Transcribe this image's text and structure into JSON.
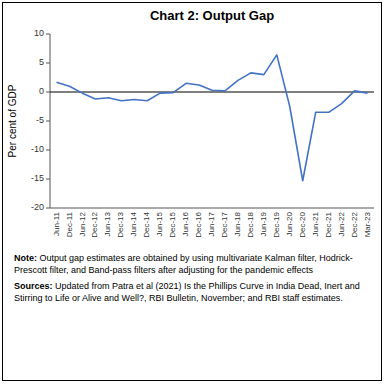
{
  "chart_data": {
    "type": "line",
    "title": "Chart 2: Output Gap",
    "ylabel": "Per cent of GDP",
    "categories": [
      "Jun-11",
      "Dec-11",
      "Jun-12",
      "Dec-12",
      "Jun-13",
      "Dec-13",
      "Jun-14",
      "Dec-14",
      "Jun-15",
      "Dec-15",
      "Jun-16",
      "Dec-16",
      "Jun-17",
      "Dec-17",
      "Jun-18",
      "Dec-18",
      "Jun-19",
      "Dec-19",
      "Jun-20",
      "Dec-20",
      "Jun-21",
      "Dec-21",
      "Jun-22",
      "Dec-22",
      "Mar-23"
    ],
    "values": [
      1.7,
      1.0,
      -0.2,
      -1.2,
      -1.0,
      -1.5,
      -1.3,
      -1.5,
      -0.2,
      -0.1,
      1.5,
      1.2,
      0.3,
      0.2,
      2.0,
      3.3,
      3.0,
      6.4,
      -2.5,
      -15.3,
      -3.5,
      -3.5,
      -2.0,
      0.2,
      -0.2
    ],
    "color": "#4472C4",
    "ylim": [
      -20,
      10
    ],
    "yticks": [
      -20,
      -15,
      -10,
      -5,
      0,
      5,
      10
    ],
    "baseline": 0,
    "grid": false,
    "note_label": "Note:",
    "note": "Output gap estimates are obtained by using multivariate Kalman filter, Hodrick-Prescott filter, and Band-pass filters after adjusting for the pandemic effects",
    "sources_label": "Sources:",
    "sources": "Updated from Patra et al (2021) Is the Phillips Curve in India Dead, Inert and Stirring to Life or Alive and Well?, RBI Bulletin, November; and RBI staff estimates."
  }
}
